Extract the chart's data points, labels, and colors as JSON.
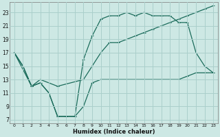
{
  "xlabel": "Humidex (Indice chaleur)",
  "background_color": "#cde8e4",
  "grid_color": "#aacfcb",
  "line_color": "#1a6b5a",
  "xlim": [
    -0.5,
    23.5
  ],
  "ylim": [
    6.5,
    24.5
  ],
  "yticks": [
    7,
    9,
    11,
    13,
    15,
    17,
    19,
    21,
    23
  ],
  "xticks": [
    0,
    1,
    2,
    3,
    4,
    5,
    6,
    7,
    8,
    9,
    10,
    11,
    12,
    13,
    14,
    15,
    16,
    17,
    18,
    19,
    20,
    21,
    22,
    23
  ],
  "line1_x": [
    0,
    1,
    2,
    3,
    4,
    5,
    6,
    7,
    8,
    9,
    10,
    11,
    12,
    13,
    14,
    15,
    16,
    17,
    18,
    19,
    20,
    21,
    22,
    23
  ],
  "line1_y": [
    17,
    15,
    12,
    12.5,
    11,
    7.5,
    7.5,
    7.5,
    9,
    12.5,
    13,
    13,
    13,
    13,
    13,
    13,
    13,
    13,
    13,
    13,
    13.5,
    14,
    14,
    14
  ],
  "line2_x": [
    0,
    1,
    2,
    3,
    4,
    5,
    6,
    7,
    8,
    9,
    10,
    11,
    12,
    13,
    14,
    15,
    16,
    17,
    18,
    19,
    20,
    21,
    22,
    23
  ],
  "line2_y": [
    17,
    15,
    12,
    12.5,
    11,
    7.5,
    7.5,
    7.5,
    16,
    19.5,
    22,
    22.5,
    22.5,
    23,
    22.5,
    23,
    22.5,
    22.5,
    22.5,
    21.5,
    21.5,
    17,
    15,
    14
  ],
  "line3_x": [
    0,
    2,
    3,
    5,
    8,
    9,
    10,
    11,
    12,
    13,
    14,
    15,
    16,
    17,
    18,
    19,
    20,
    21,
    22,
    23
  ],
  "line3_y": [
    17,
    12,
    13,
    12,
    13,
    15,
    17,
    18.5,
    18.5,
    19,
    19.5,
    20,
    20.5,
    21,
    21.5,
    22,
    22.5,
    23,
    23.5,
    24
  ]
}
